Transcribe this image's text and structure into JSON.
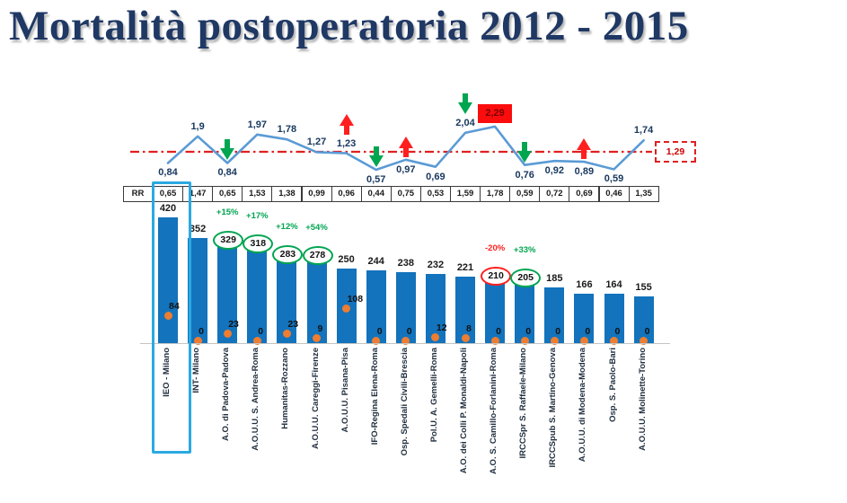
{
  "title": "Mortalità postoperatoria 2012 - 2015",
  "colors": {
    "title_navy": "#1F3864",
    "bar_blue": "#1373BC",
    "line_blue": "#5B9BD5",
    "reference_red": "#E02020",
    "arrow_green": "#00A550",
    "arrow_red": "#FF1F1F",
    "dot_orange": "#ED7D31",
    "highlight_cyan": "#2BA9E1",
    "max_box_red": "#FB0D0D"
  },
  "chart_data": {
    "type": "bar+line",
    "title": "Mortalità postoperatoria 2012 - 2015",
    "rr_label": "RR",
    "categories": [
      "IEO - Milano",
      "INT- Milano",
      "A.O. di Padova-Padova",
      "A.O.U.U. S. Andrea-Roma",
      "Humanitas-Rozzano",
      "A.O.U.U. Careggi-Firenze",
      "A.O.U.U. Pisana-Pisa",
      "IFO-Regina Elena-Roma",
      "Osp. Spedali Civili-Brescia",
      "Pol.U. A. Gemelli-Roma",
      "A.O. dei Colli P. Monaldi-Napoli",
      "A.O. S. Camillo-Forlanini-Roma",
      "IRCCSpr S. Raffaele-Milano",
      "IRCCSpub S. Martino-Genova",
      "A.O.U.U. di Modena-Modena",
      "Osp. S. Paolo-Bari",
      "A.O.U.U. Molinette-Torino"
    ],
    "rr_values": [
      "0,65",
      "1,47",
      "0,65",
      "1,53",
      "1,38",
      "0,99",
      "0,96",
      "0,44",
      "0,75",
      "0,53",
      "1,59",
      "1,78",
      "0,59",
      "0,72",
      "0,69",
      "0,46",
      "1,35"
    ],
    "series": [
      {
        "name": "mortality-rate-line",
        "type": "line",
        "values": [
          0.84,
          1.9,
          0.84,
          1.97,
          1.78,
          1.27,
          1.23,
          0.57,
          0.97,
          0.69,
          2.04,
          2.29,
          0.76,
          0.92,
          0.89,
          0.59,
          1.74
        ],
        "labels": [
          "0,84",
          "1,9",
          "0,84",
          "1,97",
          "1,78",
          "1,27",
          "1,23",
          "0,57",
          "0,97",
          "0,69",
          "2,04",
          "2,29",
          "0,76",
          "0,92",
          "0,89",
          "0,59",
          "1,74"
        ],
        "label_side": [
          "b",
          "a",
          "b",
          "a",
          "a",
          "a",
          "a",
          "b",
          "b",
          "b",
          "a",
          "box",
          "b",
          "b",
          "b",
          "b",
          "a"
        ]
      },
      {
        "name": "case-volume-bars",
        "type": "bar",
        "values": [
          420,
          352,
          329,
          318,
          283,
          278,
          250,
          244,
          238,
          232,
          221,
          210,
          205,
          185,
          166,
          164,
          155
        ]
      },
      {
        "name": "orange-dot-values",
        "type": "scatter",
        "values": [
          84,
          0,
          23,
          0,
          23,
          9,
          108,
          0,
          0,
          12,
          8,
          0,
          0,
          0,
          0,
          0,
          0
        ]
      }
    ],
    "reference": {
      "label": "1,29",
      "value": 1.29
    },
    "max_highlight": {
      "index": 11,
      "label": "2,29"
    },
    "arrows": [
      {
        "index": 2,
        "dir": "down"
      },
      {
        "index": 6,
        "dir": "up"
      },
      {
        "index": 7,
        "dir": "down"
      },
      {
        "index": 8,
        "dir": "up"
      },
      {
        "index": 10,
        "dir": "down"
      },
      {
        "index": 12,
        "dir": "down"
      },
      {
        "index": 14,
        "dir": "up"
      }
    ],
    "circled_values": [
      {
        "index": 2,
        "pct": "+15%",
        "color": "green"
      },
      {
        "index": 3,
        "pct": "+17%",
        "color": "green"
      },
      {
        "index": 4,
        "pct": "+12%",
        "color": "green"
      },
      {
        "index": 5,
        "pct": "+54%",
        "color": "green"
      },
      {
        "index": 11,
        "pct": "-20%",
        "color": "red"
      },
      {
        "index": 12,
        "pct": "+33%",
        "color": "green"
      }
    ],
    "highlighted_column": 0,
    "legend": "none",
    "grid": false
  }
}
